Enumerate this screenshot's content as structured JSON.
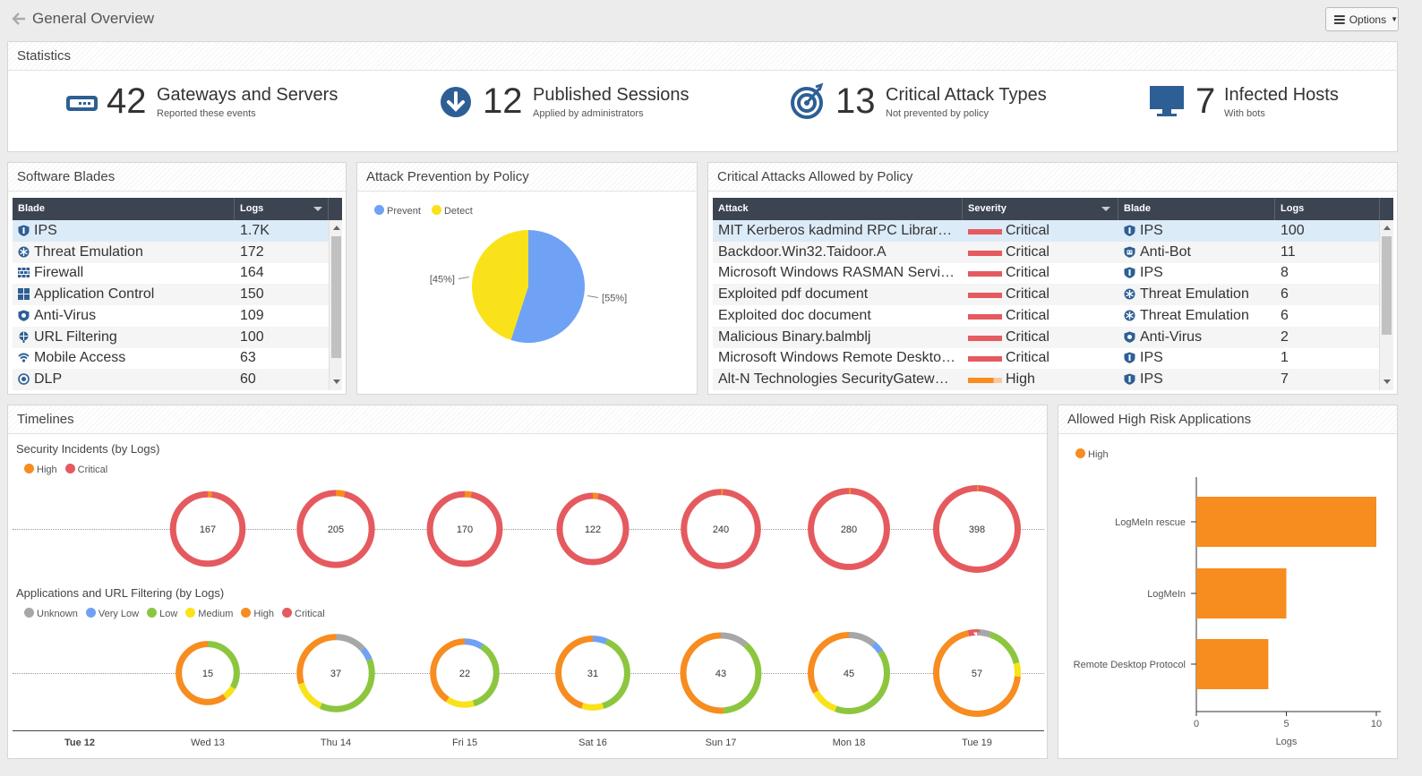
{
  "header": {
    "title": "General Overview",
    "options_label": "Options"
  },
  "statistics": {
    "title": "Statistics",
    "items": [
      {
        "value": "42",
        "label": "Gateways and Servers",
        "sub": "Reported these events",
        "icon": "gateway-icon"
      },
      {
        "value": "12",
        "label": "Published Sessions",
        "sub": "Applied by administrators",
        "icon": "download-circle-icon"
      },
      {
        "value": "13",
        "label": "Critical Attack Types",
        "sub": "Not prevented by policy",
        "icon": "target-icon"
      },
      {
        "value": "7",
        "label": "Infected Hosts",
        "sub": "With bots",
        "icon": "monitor-icon"
      }
    ]
  },
  "software_blades": {
    "title": "Software Blades",
    "columns": [
      "Blade",
      "Logs"
    ],
    "rows": [
      {
        "blade": "IPS",
        "logs": "1.7K",
        "icon": "ips-shield-icon"
      },
      {
        "blade": "Threat Emulation",
        "logs": "172",
        "icon": "threat-emulation-icon"
      },
      {
        "blade": "Firewall",
        "logs": "164",
        "icon": "firewall-icon"
      },
      {
        "blade": "Application Control",
        "logs": "150",
        "icon": "app-control-icon"
      },
      {
        "blade": "Anti-Virus",
        "logs": "109",
        "icon": "anti-virus-icon"
      },
      {
        "blade": "URL Filtering",
        "logs": "100",
        "icon": "url-filtering-icon"
      },
      {
        "blade": "Mobile Access",
        "logs": "63",
        "icon": "mobile-access-icon"
      },
      {
        "blade": "DLP",
        "logs": "60",
        "icon": "dlp-icon"
      }
    ]
  },
  "attack_prevention": {
    "title": "Attack Prevention by Policy",
    "legend": [
      {
        "name": "Prevent",
        "color": "#6fa2f5"
      },
      {
        "name": "Detect",
        "color": "#f9e21a"
      }
    ],
    "slices": [
      {
        "name": "Prevent",
        "percent": 55,
        "label": "[55%]"
      },
      {
        "name": "Detect",
        "percent": 45,
        "label": "[45%]"
      }
    ]
  },
  "critical_attacks": {
    "title": "Critical Attacks Allowed by Policy",
    "columns": [
      "Attack",
      "Severity",
      "Blade",
      "Logs"
    ],
    "rows": [
      {
        "attack": "MIT Kerberos kadmind RPC Library RPCSEC_GSS Authentication Stack Overflow",
        "severity": "Critical",
        "blade": "IPS",
        "blade_icon": "ips-shield-icon",
        "logs": "100"
      },
      {
        "attack": "Backdoor.Win32.Taidoor.A",
        "severity": "Critical",
        "blade": "Anti-Bot",
        "blade_icon": "anti-bot-icon",
        "logs": "11"
      },
      {
        "attack": "Microsoft Windows RASMAN Service Memory Corruption",
        "severity": "Critical",
        "blade": "IPS",
        "blade_icon": "ips-shield-icon",
        "logs": "8"
      },
      {
        "attack": "Exploited pdf document",
        "severity": "Critical",
        "blade": "Threat Emulation",
        "blade_icon": "threat-emulation-icon",
        "logs": "6"
      },
      {
        "attack": "Exploited doc document",
        "severity": "Critical",
        "blade": "Threat Emulation",
        "blade_icon": "threat-emulation-icon",
        "logs": "6"
      },
      {
        "attack": "Malicious Binary.balmblj",
        "severity": "Critical",
        "blade": "Anti-Virus",
        "blade_icon": "anti-virus-icon",
        "logs": "2"
      },
      {
        "attack": "Microsoft Windows Remote Desktop Protocol Denial of Service",
        "severity": "Critical",
        "blade": "IPS",
        "blade_icon": "ips-shield-icon",
        "logs": "1"
      },
      {
        "attack": "Alt-N Technologies SecurityGateway Username Buffer Overflow",
        "severity": "High",
        "blade": "IPS",
        "blade_icon": "ips-shield-icon",
        "logs": "7"
      }
    ]
  },
  "timelines": {
    "title": "Timelines",
    "security_title": "Security Incidents (by Logs)",
    "security_legend": [
      {
        "name": "High",
        "color": "#f78c1f"
      },
      {
        "name": "Critical",
        "color": "#e55a5f"
      }
    ],
    "apps_title": "Applications and URL Filtering (by Logs)",
    "apps_legend": [
      {
        "name": "Unknown",
        "color": "#a7a7a7"
      },
      {
        "name": "Very Low",
        "color": "#6fa2f5"
      },
      {
        "name": "Low",
        "color": "#8cc63f"
      },
      {
        "name": "Medium",
        "color": "#f9e21a"
      },
      {
        "name": "High",
        "color": "#f78c1f"
      },
      {
        "name": "Critical",
        "color": "#e55a5f"
      }
    ],
    "days": [
      "Tue 12",
      "Wed 13",
      "Thu 14",
      "Fri 15",
      "Sat 16",
      "Sun 17",
      "Mon 18",
      "Tue 19"
    ]
  },
  "chart_data": [
    {
      "type": "pie",
      "title": "Attack Prevention by Policy",
      "categories": [
        "Prevent",
        "Detect"
      ],
      "values": [
        55,
        45
      ]
    },
    {
      "type": "donut-timeline",
      "title": "Security Incidents (by Logs)",
      "x": [
        "Wed 13",
        "Thu 14",
        "Fri 15",
        "Sat 16",
        "Sun 17",
        "Mon 18",
        "Tue 19"
      ],
      "totals": [
        167,
        205,
        170,
        122,
        240,
        280,
        398
      ],
      "series": [
        {
          "name": "High",
          "values": [
            3,
            8,
            5,
            3,
            2,
            2,
            2
          ]
        },
        {
          "name": "Critical",
          "values": [
            164,
            197,
            165,
            119,
            238,
            278,
            396
          ]
        }
      ]
    },
    {
      "type": "donut-timeline",
      "title": "Applications and URL Filtering (by Logs)",
      "x": [
        "Wed 13",
        "Thu 14",
        "Fri 15",
        "Sat 16",
        "Sun 17",
        "Mon 18",
        "Tue 19"
      ],
      "totals": [
        15,
        37,
        22,
        31,
        43,
        45,
        57
      ],
      "series": [
        {
          "name": "Unknown",
          "values": [
            0,
            5,
            0,
            0,
            5,
            5,
            3
          ]
        },
        {
          "name": "Very Low",
          "values": [
            0,
            2,
            2,
            2,
            0,
            2,
            0
          ]
        },
        {
          "name": "Low",
          "values": [
            5,
            14,
            8,
            12,
            16,
            18,
            9
          ]
        },
        {
          "name": "Medium",
          "values": [
            1,
            5,
            3,
            3,
            0,
            5,
            3
          ]
        },
        {
          "name": "High",
          "values": [
            9,
            11,
            9,
            14,
            22,
            15,
            40
          ]
        },
        {
          "name": "Critical",
          "values": [
            0,
            0,
            0,
            0,
            0,
            0,
            2
          ]
        }
      ]
    },
    {
      "type": "bar",
      "title": "Allowed High Risk Applications",
      "orientation": "horizontal",
      "categories": [
        "LogMeIn rescue",
        "LogMeIn",
        "Remote Desktop Protocol"
      ],
      "series": [
        {
          "name": "High",
          "values": [
            10,
            5,
            4
          ]
        }
      ],
      "xlabel": "Logs",
      "xlim": [
        0,
        10
      ],
      "xticks": [
        "0",
        "5",
        "10"
      ]
    }
  ],
  "high_risk": {
    "title": "Allowed High Risk Applications",
    "legend": [
      {
        "name": "High",
        "color": "#f78c1f"
      }
    ],
    "xlabel": "Logs"
  }
}
